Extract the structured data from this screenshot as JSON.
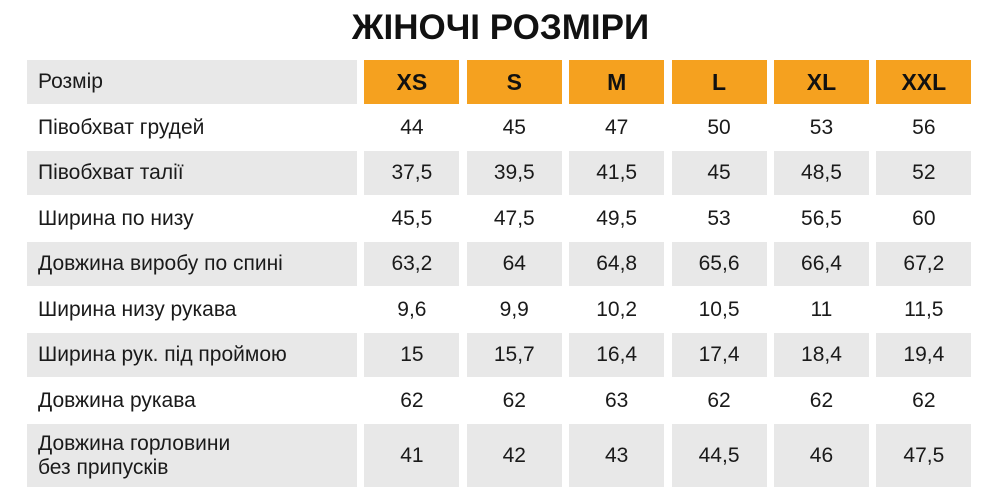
{
  "title": "ЖІНОЧІ РОЗМІРИ",
  "table": {
    "header": [
      "Розмір",
      "XS",
      "S",
      "M",
      "L",
      "XL",
      "XXL"
    ],
    "rows": [
      [
        "Півобхват грудей",
        "44",
        "45",
        "47",
        "50",
        "53",
        "56"
      ],
      [
        "Півобхват талії",
        "37,5",
        "39,5",
        "41,5",
        "45",
        "48,5",
        "52"
      ],
      [
        "Ширина по низу",
        "45,5",
        "47,5",
        "49,5",
        "53",
        "56,5",
        "60"
      ],
      [
        "Довжина виробу по спині",
        "63,2",
        "64",
        "64,8",
        "65,6",
        "66,4",
        "67,2"
      ],
      [
        "Ширина низу рукава",
        "9,6",
        "9,9",
        "10,2",
        "10,5",
        "11",
        "11,5"
      ],
      [
        "Ширина рук. під проймою",
        "15",
        "15,7",
        "16,4",
        "17,4",
        "18,4",
        "19,4"
      ],
      [
        "Довжина рукава",
        "62",
        "62",
        "63",
        "62",
        "62",
        "62"
      ],
      [
        "Довжина горловини\nбез припусків",
        "41",
        "42",
        "43",
        "44,5",
        "46",
        "47,5"
      ]
    ]
  }
}
